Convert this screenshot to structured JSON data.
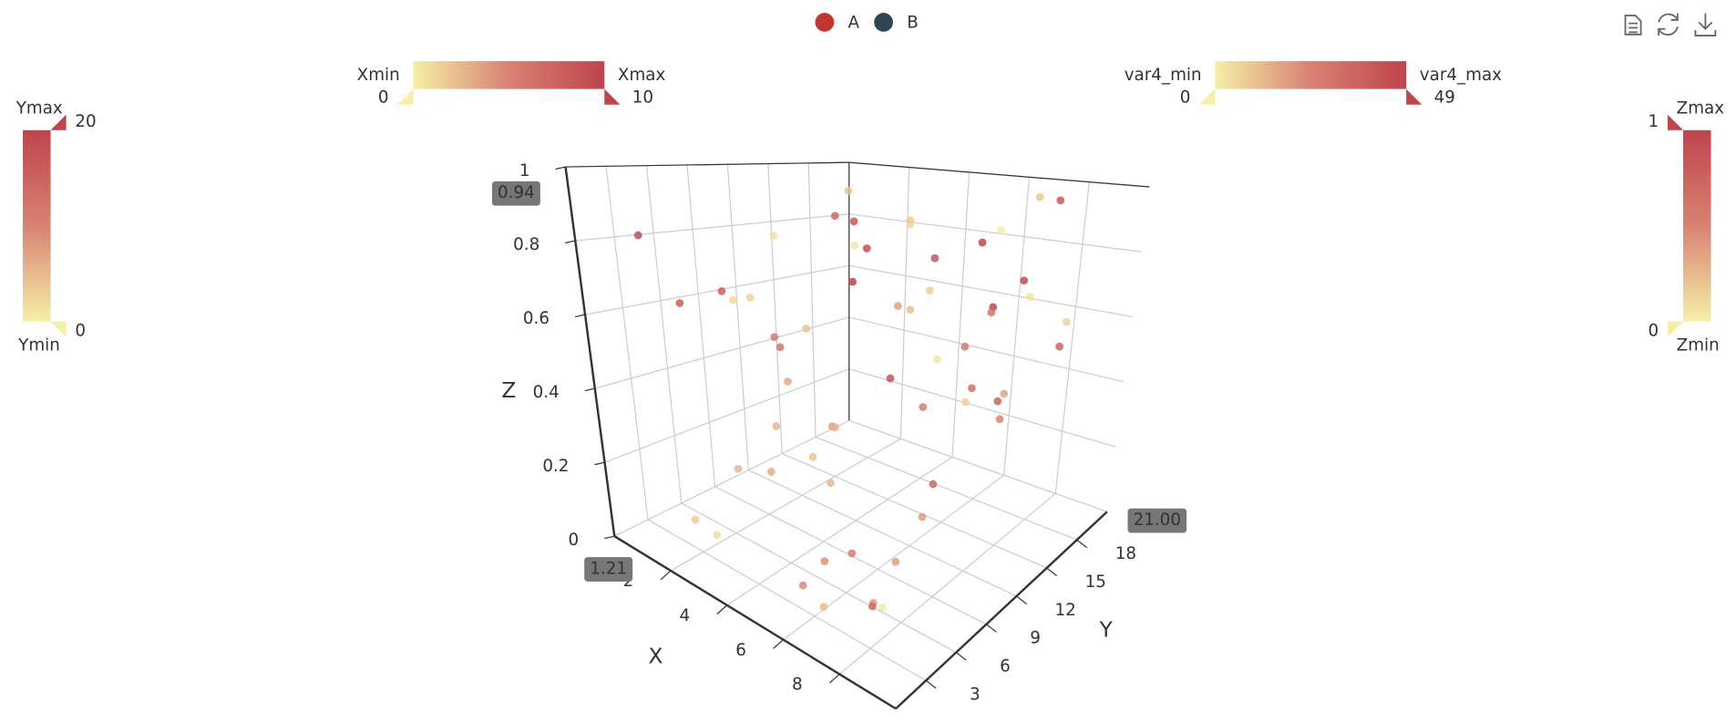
{
  "chart_data": {
    "type": "scatter3d",
    "legend": {
      "position": "top"
    },
    "series": [
      {
        "name": "A",
        "color": "#c23531",
        "x": [
          1.2,
          2.5,
          3.1,
          4.0,
          5.2,
          6.3,
          7.5,
          8.1,
          9.0,
          2.0,
          3.6,
          5.8,
          6.9,
          8.8,
          1.5,
          4.4,
          7.0,
          9.4,
          0.8,
          3.0,
          5.0,
          6.0,
          8.0,
          2.8,
          4.8,
          7.8,
          9.6,
          1.0,
          6.6,
          3.8
        ],
        "y": [
          2,
          5,
          8,
          12,
          15,
          18,
          20,
          3,
          6,
          10,
          14,
          17,
          19,
          1,
          4,
          9,
          11,
          16,
          13,
          7,
          20,
          2,
          12,
          18,
          6,
          15,
          9,
          19,
          5,
          11
        ],
        "z": [
          0.85,
          0.72,
          0.55,
          0.91,
          0.33,
          0.62,
          0.95,
          0.12,
          0.4,
          0.25,
          0.8,
          0.5,
          0.7,
          0.18,
          0.66,
          0.35,
          0.88,
          0.6,
          0.45,
          0.2,
          0.78,
          0.1,
          0.52,
          0.3,
          0.68,
          0.42,
          0.82,
          0.58,
          0.15,
          0.93
        ],
        "var4": [
          45,
          38,
          30,
          42,
          25,
          47,
          40,
          20,
          35,
          12,
          44,
          28,
          46,
          33,
          39,
          18,
          41,
          36,
          27,
          15,
          48,
          22,
          31,
          43,
          10,
          37,
          29,
          49,
          26,
          34
        ]
      },
      {
        "name": "B",
        "color": "#2f4554",
        "x": [
          0.5,
          1.8,
          2.9,
          4.2,
          5.5,
          6.8,
          7.2,
          8.5,
          9.2,
          2.2,
          3.4,
          4.9,
          6.1,
          7.7,
          9.8,
          1.3,
          3.9,
          5.6,
          8.3,
          0.9,
          4.6,
          6.4,
          7.9,
          2.6,
          5.3,
          9.0,
          1.6,
          3.2,
          7.1,
          8.9
        ],
        "y": [
          14,
          3,
          9,
          16,
          6,
          12,
          19,
          4,
          17,
          21,
          1,
          8,
          13,
          5,
          10,
          18,
          2,
          20,
          7,
          11,
          15,
          3,
          17,
          19,
          5,
          12,
          8,
          14,
          1,
          9
        ],
        "z": [
          0.77,
          0.08,
          0.43,
          0.87,
          0.28,
          0.57,
          0.97,
          0.22,
          0.65,
          0.48,
          0.14,
          0.38,
          0.74,
          0.05,
          0.59,
          0.92,
          0.32,
          0.83,
          0.27,
          0.6,
          0.9,
          0.16,
          0.7,
          0.53,
          0.36,
          0.46,
          0.64,
          0.8,
          0.11,
          0.56
        ],
        "var4": [
          3,
          8,
          15,
          5,
          12,
          2,
          9,
          18,
          6,
          11,
          4,
          14,
          7,
          1,
          16,
          10,
          13,
          0,
          19,
          6,
          8,
          21,
          3,
          17,
          9,
          24,
          5,
          2,
          11,
          7
        ]
      }
    ],
    "xlabel": "X",
    "ylabel": "Y",
    "zlabel": "Z",
    "xlim": [
      0,
      10
    ],
    "xticks": [
      2,
      4,
      6,
      8
    ],
    "ylim": [
      0,
      21
    ],
    "yticks": [
      3,
      6,
      9,
      12,
      15,
      18
    ],
    "zlim": [
      0,
      1
    ],
    "zticks": [
      0,
      0.2,
      0.4,
      0.6,
      0.8,
      1
    ],
    "grid": true,
    "axis_pointer": {
      "x": 1.21,
      "y": {
        "value": 21,
        "label": "21.00"
      },
      "z": 0.94
    },
    "visual_maps": [
      {
        "dimension": "x",
        "min_label": "Xmin",
        "max_label": "Xmax",
        "range": [
          0,
          10
        ],
        "orient": "horizontal"
      },
      {
        "dimension": "var4",
        "min_label": "var4_min",
        "max_label": "var4_max",
        "range": [
          0,
          49
        ],
        "orient": "horizontal"
      },
      {
        "dimension": "y",
        "min_label": "Ymin",
        "max_label": "Ymax",
        "range": [
          0,
          20
        ],
        "orient": "vertical"
      },
      {
        "dimension": "z",
        "min_label": "Zmin",
        "max_label": "Zmax",
        "range": [
          0,
          1
        ],
        "orient": "vertical"
      }
    ],
    "color_range": [
      "#f6efa6",
      "#d88273",
      "#bf444c"
    ]
  }
}
